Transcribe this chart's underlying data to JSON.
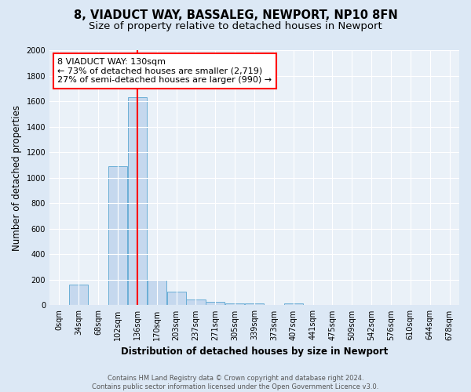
{
  "title": "8, VIADUCT WAY, BASSALEG, NEWPORT, NP10 8FN",
  "subtitle": "Size of property relative to detached houses in Newport",
  "xlabel": "Distribution of detached houses by size in Newport",
  "ylabel": "Number of detached properties",
  "bar_labels": [
    "0sqm",
    "34sqm",
    "68sqm",
    "102sqm",
    "136sqm",
    "170sqm",
    "203sqm",
    "237sqm",
    "271sqm",
    "305sqm",
    "339sqm",
    "373sqm",
    "407sqm",
    "441sqm",
    "475sqm",
    "509sqm",
    "542sqm",
    "576sqm",
    "610sqm",
    "644sqm",
    "678sqm"
  ],
  "bar_values": [
    0,
    165,
    0,
    1090,
    1630,
    200,
    105,
    45,
    30,
    15,
    15,
    0,
    15,
    0,
    0,
    0,
    0,
    0,
    0,
    0,
    0
  ],
  "bar_color": "#c5d8ee",
  "bar_edge_color": "#6aaed6",
  "vline_index": 4,
  "vline_color": "red",
  "annotation_text": "8 VIADUCT WAY: 130sqm\n← 73% of detached houses are smaller (2,719)\n27% of semi-detached houses are larger (990) →",
  "annotation_box_color": "white",
  "annotation_box_edge": "red",
  "ylim": [
    0,
    2000
  ],
  "yticks": [
    0,
    200,
    400,
    600,
    800,
    1000,
    1200,
    1400,
    1600,
    1800,
    2000
  ],
  "footer_text": "Contains HM Land Registry data © Crown copyright and database right 2024.\nContains public sector information licensed under the Open Government Licence v3.0.",
  "bg_color": "#dce8f5",
  "plot_bg_color": "#eaf1f8",
  "title_fontsize": 10.5,
  "subtitle_fontsize": 9.5,
  "axis_label_fontsize": 8.5,
  "tick_fontsize": 7,
  "annotation_fontsize": 8,
  "footer_fontsize": 6
}
